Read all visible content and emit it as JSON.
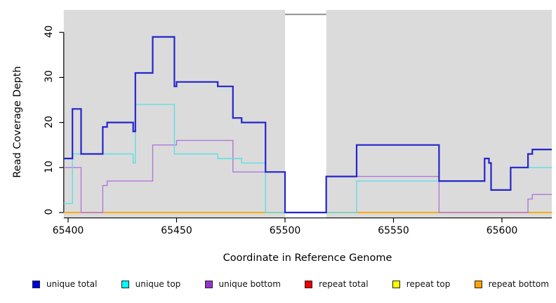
{
  "x_axis": {
    "label": "Coordinate in Reference Genome",
    "ticks": [
      65400,
      65450,
      65500,
      65550,
      65600
    ]
  },
  "y_axis": {
    "label": "Read Coverage Depth",
    "ticks": [
      0,
      10,
      20,
      30,
      40
    ]
  },
  "chart_data": {
    "type": "line",
    "subtype": "step",
    "xlabel": "Coordinate in Reference Genome",
    "ylabel": "Read Coverage Depth",
    "x_range": [
      65398,
      65623
    ],
    "y_range": [
      0,
      45
    ],
    "x_ticks": [
      65400,
      65450,
      65500,
      65550,
      65600
    ],
    "y_ticks": [
      0,
      10,
      20,
      30,
      40
    ],
    "grid": "off",
    "plot_background": "#DBDBDB",
    "gap_region": {
      "x_start": 65500,
      "x_end": 65519,
      "fill": "#FFFFFF",
      "top_line_value": 44,
      "top_line_color": "#808080"
    },
    "legend_position": "bottom",
    "draw_order": [
      "repeat total",
      "repeat top",
      "repeat bottom",
      "unique bottom",
      "unique top",
      "unique total"
    ],
    "series": [
      {
        "name": "unique total",
        "line_color": "#2525CC",
        "legend_color": "#0000E6",
        "line_width": 2.2,
        "points": [
          [
            65398,
            12
          ],
          [
            65402,
            23
          ],
          [
            65406,
            13
          ],
          [
            65416,
            19
          ],
          [
            65418,
            20
          ],
          [
            65430,
            18
          ],
          [
            65431,
            31
          ],
          [
            65439,
            39
          ],
          [
            65449,
            28
          ],
          [
            65450,
            29
          ],
          [
            65469,
            28
          ],
          [
            65476,
            21
          ],
          [
            65480,
            20
          ],
          [
            65491,
            9
          ],
          [
            65500,
            0
          ],
          [
            65519,
            8
          ],
          [
            65533,
            15
          ],
          [
            65571,
            7
          ],
          [
            65592,
            12
          ],
          [
            65594,
            11
          ],
          [
            65595,
            5
          ],
          [
            65604,
            10
          ],
          [
            65612,
            13
          ],
          [
            65614,
            14
          ],
          [
            65623,
            14
          ]
        ]
      },
      {
        "name": "unique top",
        "line_color": "#5EDEE6",
        "legend_color": "#00FFFF",
        "line_width": 1.4,
        "points": [
          [
            65398,
            2
          ],
          [
            65402,
            13
          ],
          [
            65430,
            11
          ],
          [
            65431,
            24
          ],
          [
            65449,
            13
          ],
          [
            65469,
            12
          ],
          [
            65480,
            11
          ],
          [
            65491,
            0
          ],
          [
            65533,
            7
          ],
          [
            65592,
            12
          ],
          [
            65594,
            11
          ],
          [
            65595,
            5
          ],
          [
            65604,
            10
          ],
          [
            65623,
            10
          ]
        ]
      },
      {
        "name": "unique bottom",
        "line_color": "#B177DA",
        "legend_color": "#9932CC",
        "line_width": 1.4,
        "points": [
          [
            65398,
            10
          ],
          [
            65406,
            0
          ],
          [
            65416,
            6
          ],
          [
            65418,
            7
          ],
          [
            65439,
            15
          ],
          [
            65450,
            16
          ],
          [
            65476,
            9
          ],
          [
            65500,
            0
          ],
          [
            65519,
            8
          ],
          [
            65571,
            0
          ],
          [
            65612,
            3
          ],
          [
            65614,
            4
          ],
          [
            65623,
            4
          ]
        ]
      },
      {
        "name": "repeat total",
        "line_color": "#E02020",
        "legend_color": "#EE0000",
        "line_width": 1.4,
        "points": [
          [
            65398,
            0
          ],
          [
            65623,
            0
          ]
        ]
      },
      {
        "name": "repeat top",
        "line_color": "#FFFF00",
        "legend_color": "#FFFF00",
        "line_width": 1.4,
        "points": [
          [
            65398,
            0
          ],
          [
            65623,
            0
          ]
        ]
      },
      {
        "name": "repeat bottom",
        "line_color": "#FFA500",
        "legend_color": "#FFA500",
        "line_width": 1.6,
        "points": [
          [
            65398,
            0
          ],
          [
            65623,
            0
          ]
        ]
      }
    ]
  }
}
